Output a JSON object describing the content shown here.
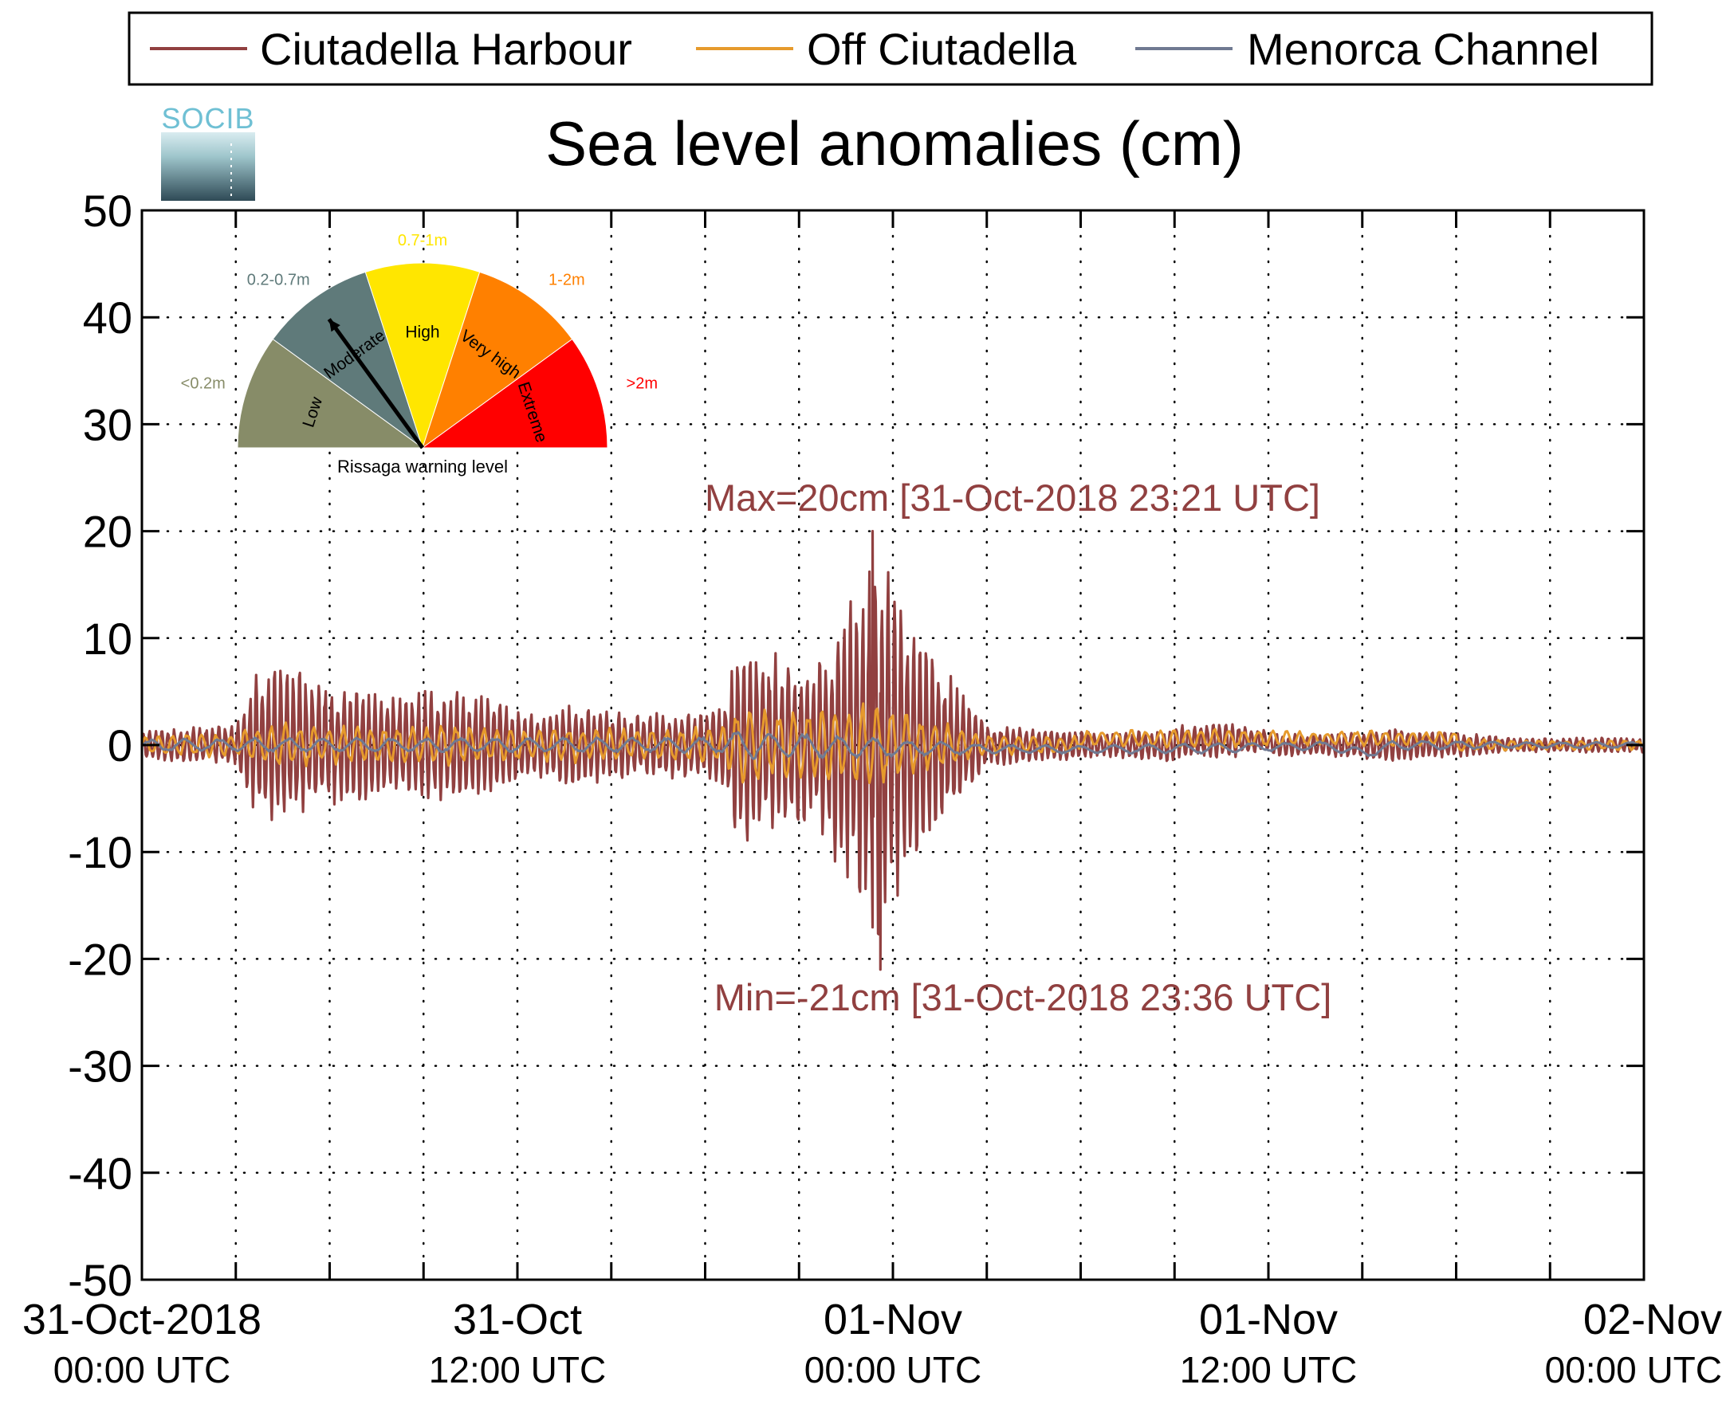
{
  "chart_data": {
    "type": "line",
    "title": "Sea level anomalies (cm)",
    "xlabel": "",
    "ylabel": "",
    "ylim": [
      -50,
      50
    ],
    "yticks": [
      -50,
      -40,
      -30,
      -20,
      -10,
      0,
      10,
      20,
      30,
      40,
      50
    ],
    "xlim_hours": [
      0,
      48
    ],
    "xtick_labels": [
      {
        "hour": 0,
        "line1": "31-Oct-2018",
        "line2": "00:00 UTC"
      },
      {
        "hour": 12,
        "line1": "31-Oct",
        "line2": "12:00 UTC"
      },
      {
        "hour": 24,
        "line1": "01-Nov",
        "line2": "00:00 UTC"
      },
      {
        "hour": 36,
        "line1": "01-Nov",
        "line2": "12:00 UTC"
      },
      {
        "hour": 48,
        "line1": "02-Nov",
        "line2": "00:00 UTC"
      }
    ],
    "grid": true,
    "grid_style": "dotted",
    "legend_position": "top",
    "series": [
      {
        "name": "Ciutadella Harbour",
        "color": "#914040"
      },
      {
        "name": "Off Ciutadella",
        "color": "#e69a2c"
      },
      {
        "name": "Menorca Channel",
        "color": "#707a92"
      }
    ],
    "envelope_points": [
      {
        "hour": 0,
        "harbour_amp": 1.5,
        "off_amp": 1.0,
        "channel_amp": 0.6
      },
      {
        "hour": 3,
        "harbour_amp": 2.0,
        "off_amp": 1.2,
        "channel_amp": 0.6
      },
      {
        "hour": 3.6,
        "harbour_amp": 6.5,
        "off_amp": 2.0,
        "channel_amp": 0.7
      },
      {
        "hour": 4.6,
        "harbour_amp": 8.0,
        "off_amp": 2.2,
        "channel_amp": 0.7
      },
      {
        "hour": 6.0,
        "harbour_amp": 6.0,
        "off_amp": 2.0,
        "channel_amp": 0.7
      },
      {
        "hour": 7.5,
        "harbour_amp": 5.0,
        "off_amp": 1.8,
        "channel_amp": 0.7
      },
      {
        "hour": 10.5,
        "harbour_amp": 5.5,
        "off_amp": 2.0,
        "channel_amp": 0.7
      },
      {
        "hour": 12.5,
        "harbour_amp": 3.0,
        "off_amp": 1.5,
        "channel_amp": 0.7
      },
      {
        "hour": 13.5,
        "harbour_amp": 4.0,
        "off_amp": 1.8,
        "channel_amp": 0.7
      },
      {
        "hour": 16.0,
        "harbour_amp": 3.0,
        "off_amp": 1.5,
        "channel_amp": 0.7
      },
      {
        "hour": 18.5,
        "harbour_amp": 3.5,
        "off_amp": 1.8,
        "channel_amp": 0.8
      },
      {
        "hour": 19.2,
        "harbour_amp": 11.0,
        "off_amp": 4.0,
        "channel_amp": 1.5
      },
      {
        "hour": 20.0,
        "harbour_amp": 9.0,
        "off_amp": 3.5,
        "channel_amp": 1.2
      },
      {
        "hour": 21.5,
        "harbour_amp": 8.0,
        "off_amp": 3.5,
        "channel_amp": 1.2
      },
      {
        "hour": 23.0,
        "harbour_amp": 16.0,
        "off_amp": 4.0,
        "channel_amp": 1.0
      },
      {
        "hour": 23.5,
        "harbour_amp": 20.5,
        "off_amp": 4.0,
        "channel_amp": 1.0
      },
      {
        "hour": 24.5,
        "harbour_amp": 12.0,
        "off_amp": 3.0,
        "channel_amp": 0.8
      },
      {
        "hour": 26.0,
        "harbour_amp": 6.0,
        "off_amp": 2.0,
        "channel_amp": 0.6
      },
      {
        "hour": 27.0,
        "harbour_amp": 2.0,
        "off_amp": 1.0,
        "channel_amp": 0.4
      },
      {
        "hour": 31.0,
        "harbour_amp": 1.2,
        "off_amp": 0.8,
        "channel_amp": 0.4
      },
      {
        "hour": 34.0,
        "harbour_amp": 1.8,
        "off_amp": 1.0,
        "channel_amp": 0.5
      },
      {
        "hour": 37.0,
        "harbour_amp": 1.0,
        "off_amp": 0.7,
        "channel_amp": 0.4
      },
      {
        "hour": 40.0,
        "harbour_amp": 1.6,
        "off_amp": 0.8,
        "channel_amp": 0.5
      },
      {
        "hour": 44.0,
        "harbour_amp": 0.7,
        "off_amp": 0.5,
        "channel_amp": 0.3
      },
      {
        "hour": 48.0,
        "harbour_amp": 0.7,
        "off_amp": 0.5,
        "channel_amp": 0.3
      }
    ],
    "annotations": {
      "max": {
        "text": "Max=20cm [31-Oct-2018 23:21 UTC]",
        "hour": 23.35,
        "value": 20
      },
      "min": {
        "text": "Min=-21cm [31-Oct-2018 23:36 UTC]",
        "hour": 23.6,
        "value": -21
      }
    }
  },
  "logo_text": "SOCIB",
  "gauge": {
    "caption": "Rissaga warning level",
    "segments": [
      {
        "label": "Low",
        "range": "<0.2m",
        "color": "#878c68",
        "range_color": "#878c68"
      },
      {
        "label": "Moderate",
        "range": "0.2-0.7m",
        "color": "#5f7a7a",
        "range_color": "#5f7a7a"
      },
      {
        "label": "High",
        "range": "0.7-1m",
        "color": "#ffe600",
        "range_color": "#ffe600"
      },
      {
        "label": "Very high",
        "range": "1-2m",
        "color": "#ff8000",
        "range_color": "#ff8000"
      },
      {
        "label": "Extreme",
        "range": ">2m",
        "color": "#ff0000",
        "range_color": "#ff0000"
      }
    ],
    "needle_level": "Moderate"
  }
}
